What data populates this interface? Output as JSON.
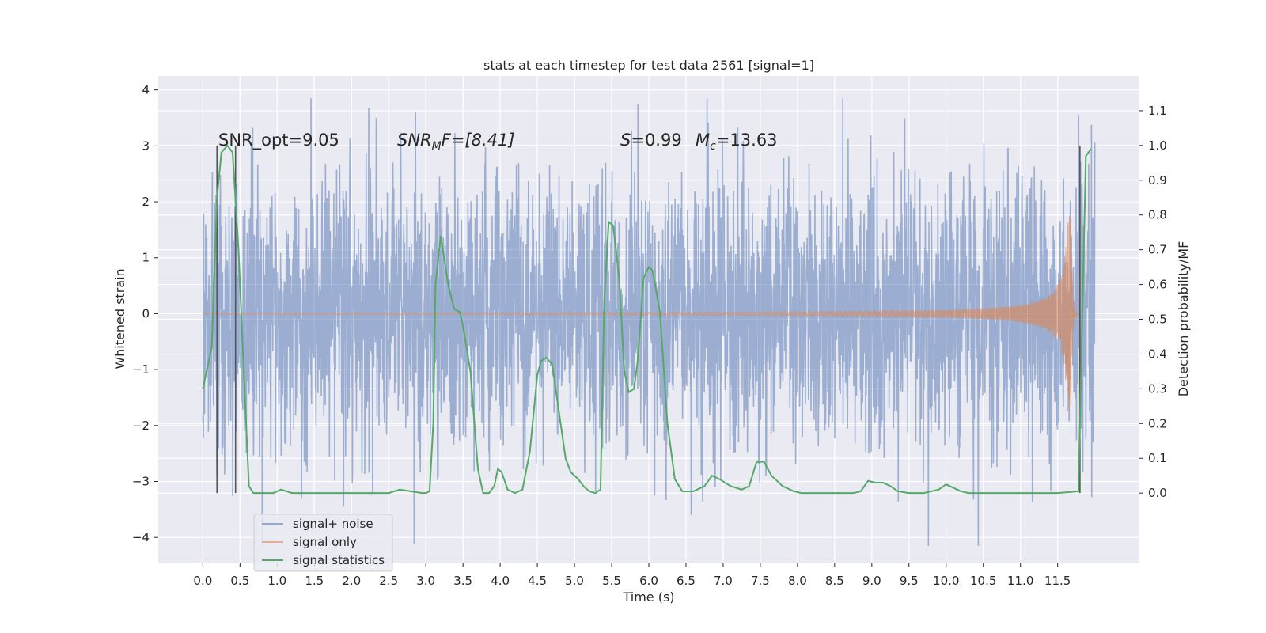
{
  "chart_data": {
    "type": "line",
    "title": "stats at each timestep for test data 2561 [signal=1]",
    "xlabel": "Time (s)",
    "ylabel": "Whitened strain",
    "y2label": "Detection probability/MF",
    "xlim": [
      -0.6,
      12.6
    ],
    "ylim": [
      -4.45,
      4.25
    ],
    "y2lim": [
      -0.2,
      1.2
    ],
    "x_ticks": [
      0.0,
      0.5,
      1.0,
      1.5,
      2.0,
      2.5,
      3.0,
      3.5,
      4.0,
      4.5,
      5.0,
      5.5,
      6.0,
      6.5,
      7.0,
      7.5,
      8.0,
      8.5,
      9.0,
      9.5,
      10.0,
      10.5,
      11.0,
      11.5
    ],
    "x_tick_labels": [
      "0.0",
      "0.5",
      "1.0",
      "1.5",
      "2.0",
      "2.5",
      "3.0",
      "3.5",
      "4.0",
      "4.5",
      "5.0",
      "5.5",
      "6.0",
      "6.5",
      "7.0",
      "7.5",
      "8.0",
      "8.5",
      "9.0",
      "9.5",
      "10.0",
      "10.5",
      "11.0",
      "11.5"
    ],
    "y_ticks": [
      -4,
      -3,
      -2,
      -1,
      0,
      1,
      2,
      3,
      4
    ],
    "y_tick_labels": [
      "−4",
      "−3",
      "−2",
      "−1",
      "0",
      "1",
      "2",
      "3",
      "4"
    ],
    "y2_ticks": [
      0.0,
      0.1,
      0.2,
      0.3,
      0.4,
      0.5,
      0.6,
      0.7,
      0.8,
      0.9,
      1.0,
      1.1
    ],
    "y2_tick_labels": [
      "0.0",
      "0.1",
      "0.2",
      "0.3",
      "0.4",
      "0.5",
      "0.6",
      "0.7",
      "0.8",
      "0.9",
      "1.0",
      "1.1"
    ],
    "grid": true,
    "legend_position": "lower-left",
    "annotations": {
      "snr_opt": "SNR_opt=9.05",
      "snr_mf_main": "SNR",
      "snr_mf_sub": "M",
      "snr_mf_rest": "F=[8.41]",
      "s_main": "S",
      "s_rest": "=0.99",
      "mc_main": "M",
      "mc_sub": "c",
      "mc_rest": "=13.63"
    },
    "vertical_markers": [
      {
        "x": 0.19,
        "y2_top": 1.0
      },
      {
        "x": 0.44,
        "y2_top": 1.0
      },
      {
        "x": 11.8,
        "y2_top": 1.0
      }
    ],
    "series": [
      {
        "name": "signal+ noise",
        "color": "#4c72b0",
        "axis": "left",
        "x_range": [
          0.0,
          12.0
        ],
        "typical_envelope": [
          -1.6,
          1.6
        ],
        "noise_seed": 2561
      },
      {
        "name": "signal only",
        "color": "#dd8452",
        "axis": "left",
        "x_range": [
          0.0,
          11.8
        ],
        "chirp_peak_time": 11.68,
        "chirp_peak_amplitude": 1.75
      },
      {
        "name": "signal statistics",
        "color": "#55a868",
        "axis": "right",
        "x": [
          0.0,
          0.12,
          0.19,
          0.25,
          0.33,
          0.4,
          0.48,
          0.55,
          0.62,
          0.68,
          0.75,
          0.85,
          0.95,
          1.0,
          1.05,
          1.2,
          1.5,
          2.0,
          2.5,
          2.65,
          2.8,
          2.95,
          3.0,
          3.05,
          3.1,
          3.13,
          3.2,
          3.3,
          3.38,
          3.46,
          3.5,
          3.6,
          3.7,
          3.77,
          3.85,
          3.92,
          3.97,
          4.02,
          4.1,
          4.2,
          4.3,
          4.4,
          4.5,
          4.55,
          4.62,
          4.7,
          4.8,
          4.88,
          4.95,
          5.05,
          5.12,
          5.2,
          5.28,
          5.35,
          5.4,
          5.46,
          5.52,
          5.6,
          5.67,
          5.73,
          5.8,
          5.85,
          5.93,
          6.0,
          6.05,
          6.15,
          6.25,
          6.35,
          6.45,
          6.6,
          6.75,
          6.85,
          6.95,
          7.1,
          7.25,
          7.35,
          7.45,
          7.55,
          7.65,
          7.8,
          7.95,
          8.05,
          8.2,
          8.5,
          8.75,
          8.85,
          8.95,
          9.05,
          9.15,
          9.25,
          9.35,
          9.5,
          9.7,
          9.8,
          9.9,
          10.0,
          10.1,
          10.2,
          10.3,
          10.5,
          11.0,
          11.5,
          11.78,
          11.82,
          11.88,
          11.95
        ],
        "y": [
          0.3,
          0.42,
          0.85,
          0.98,
          1.0,
          0.98,
          0.7,
          0.35,
          0.02,
          0.0,
          0.0,
          0.0,
          0.0,
          0.005,
          0.01,
          0.0,
          0.0,
          0.0,
          0.0,
          0.01,
          0.005,
          0.0,
          0.0,
          0.005,
          0.2,
          0.6,
          0.74,
          0.6,
          0.53,
          0.52,
          0.48,
          0.35,
          0.07,
          0.0,
          0.0,
          0.02,
          0.07,
          0.06,
          0.01,
          0.0,
          0.01,
          0.12,
          0.34,
          0.38,
          0.39,
          0.37,
          0.22,
          0.1,
          0.06,
          0.04,
          0.02,
          0.005,
          0.0,
          0.01,
          0.55,
          0.78,
          0.77,
          0.62,
          0.35,
          0.29,
          0.3,
          0.38,
          0.62,
          0.65,
          0.64,
          0.52,
          0.2,
          0.04,
          0.005,
          0.005,
          0.02,
          0.05,
          0.04,
          0.02,
          0.01,
          0.02,
          0.09,
          0.09,
          0.05,
          0.02,
          0.005,
          0.0,
          0.0,
          0.0,
          0.0,
          0.005,
          0.035,
          0.03,
          0.03,
          0.02,
          0.005,
          0.0,
          0.0,
          0.005,
          0.01,
          0.025,
          0.015,
          0.005,
          0.0,
          0.0,
          0.0,
          0.0,
          0.005,
          0.4,
          0.97,
          0.99
        ]
      }
    ]
  }
}
